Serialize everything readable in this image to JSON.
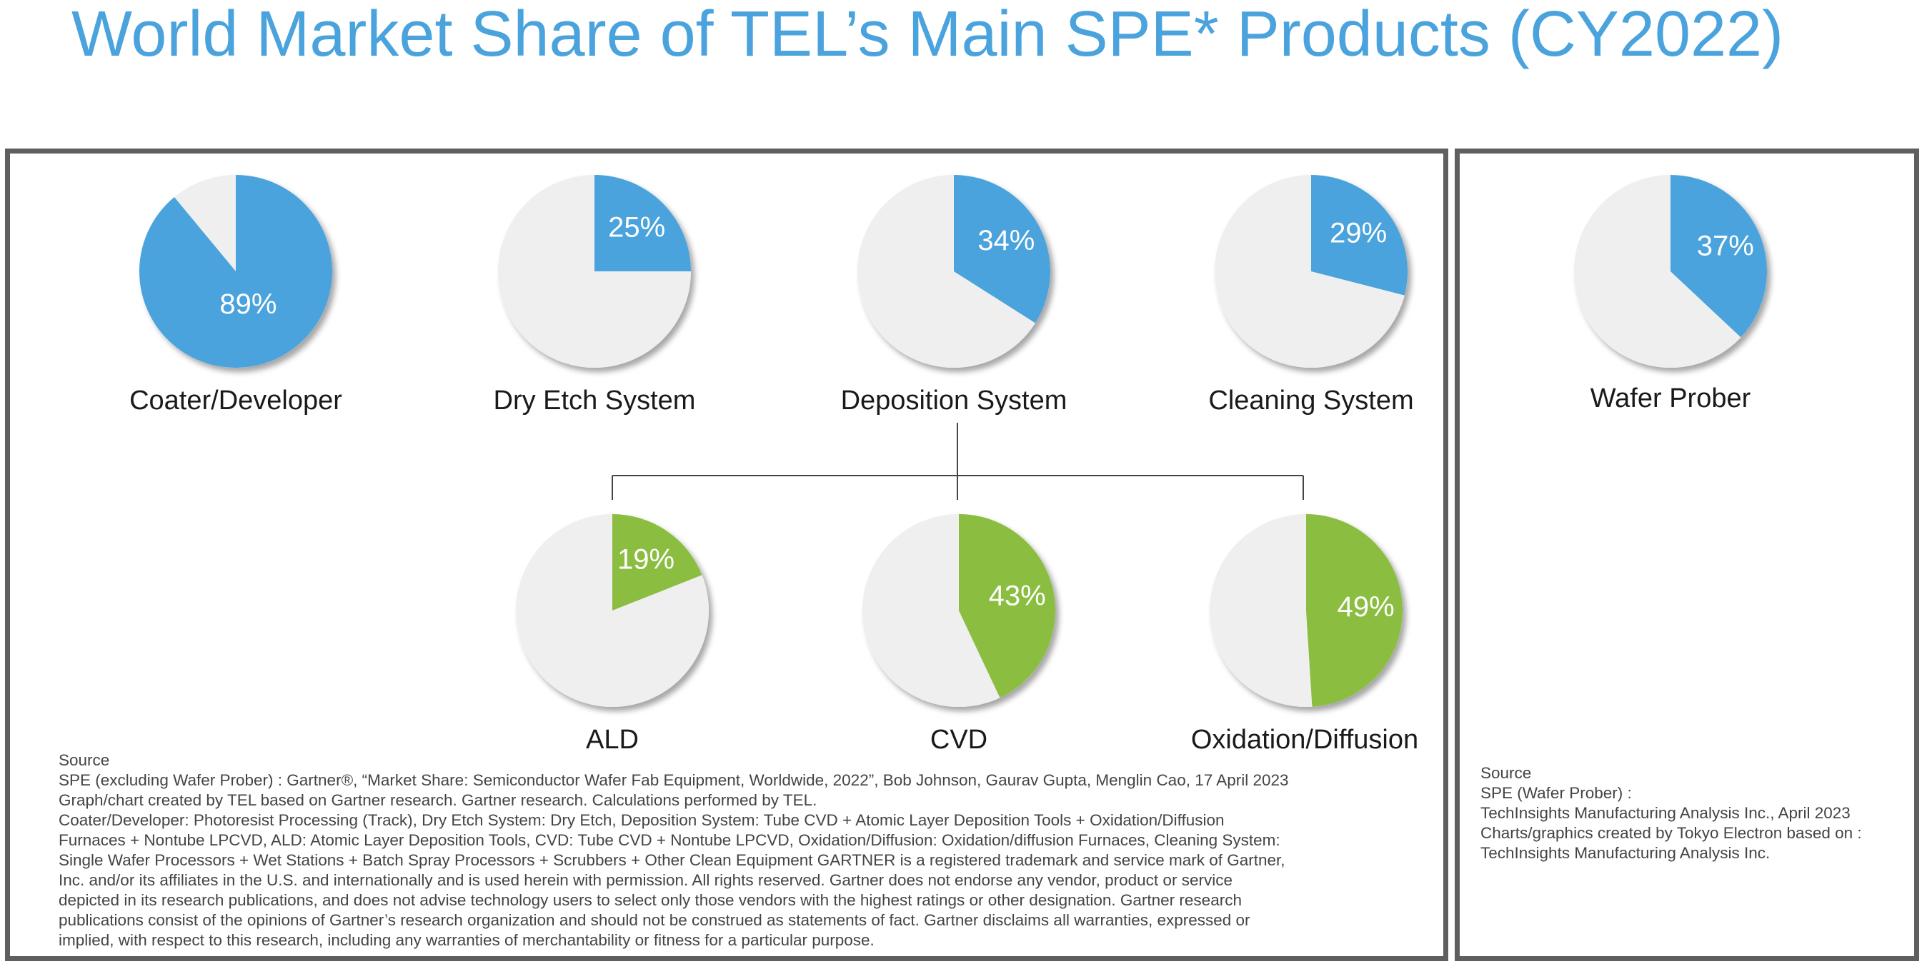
{
  "title": "World Market Share of TEL’s Main SPE* Products (CY2022)",
  "colors": {
    "title": "#4aa3dc",
    "primary": "#4aa3dc",
    "secondary": "#8bbd40",
    "background_slice": "#efefef"
  },
  "chart_data": [
    {
      "type": "pie",
      "category": "Coater/Developer",
      "value": 89,
      "label": "89%",
      "color": "#4aa3dc"
    },
    {
      "type": "pie",
      "category": "Dry Etch System",
      "value": 25,
      "label": "25%",
      "color": "#4aa3dc"
    },
    {
      "type": "pie",
      "category": "Deposition System",
      "value": 34,
      "label": "34%",
      "color": "#4aa3dc"
    },
    {
      "type": "pie",
      "category": "Cleaning System",
      "value": 29,
      "label": "29%",
      "color": "#4aa3dc"
    },
    {
      "type": "pie",
      "category": "Wafer Prober",
      "value": 37,
      "label": "37%",
      "color": "#4aa3dc"
    },
    {
      "type": "pie",
      "category": "ALD",
      "value": 19,
      "label": "19%",
      "color": "#8bbd40",
      "parent": "Deposition System"
    },
    {
      "type": "pie",
      "category": "CVD",
      "value": 43,
      "label": "43%",
      "color": "#8bbd40",
      "parent": "Deposition System"
    },
    {
      "type": "pie",
      "category": "Oxidation/Diffusion",
      "value": 49,
      "label": "49%",
      "color": "#8bbd40",
      "parent": "Deposition System"
    }
  ],
  "source_main": "Source\nSPE (excluding Wafer Prober) : Gartner®, “Market Share: Semiconductor Wafer Fab Equipment, Worldwide, 2022”, Bob Johnson, Gaurav Gupta, Menglin Cao, 17 April 2023\nGraph/chart created by TEL based on Gartner research. Gartner research. Calculations performed by TEL.\nCoater/Developer: Photoresist Processing (Track), Dry Etch System: Dry Etch, Deposition System: Tube CVD + Atomic Layer Deposition Tools + Oxidation/Diffusion\nFurnaces + Nontube LPCVD, ALD: Atomic Layer Deposition Tools, CVD: Tube CVD + Nontube LPCVD, Oxidation/Diffusion: Oxidation/diffusion Furnaces, Cleaning System:\nSingle Wafer Processors + Wet Stations + Batch Spray Processors + Scrubbers + Other Clean Equipment  GARTNER is a registered trademark and service mark of Gartner,\nInc. and/or its affiliates in the U.S. and internationally and is used herein with permission. All rights reserved. Gartner does not endorse any vendor, product or service\ndepicted in its research publications, and does not advise technology users to select only those vendors with the highest ratings or other designation. Gartner research\npublications consist of the opinions of Gartner’s research organization and should not be construed as statements of fact. Gartner disclaims all warranties, expressed or\nimplied, with respect to this research, including any warranties of merchantability or fitness for a particular purpose.",
  "source_prober": "Source\nSPE (Wafer Prober) :\nTechInsights Manufacturing Analysis Inc., April 2023\nCharts/graphics created by Tokyo Electron based on :\nTechInsights Manufacturing Analysis Inc."
}
